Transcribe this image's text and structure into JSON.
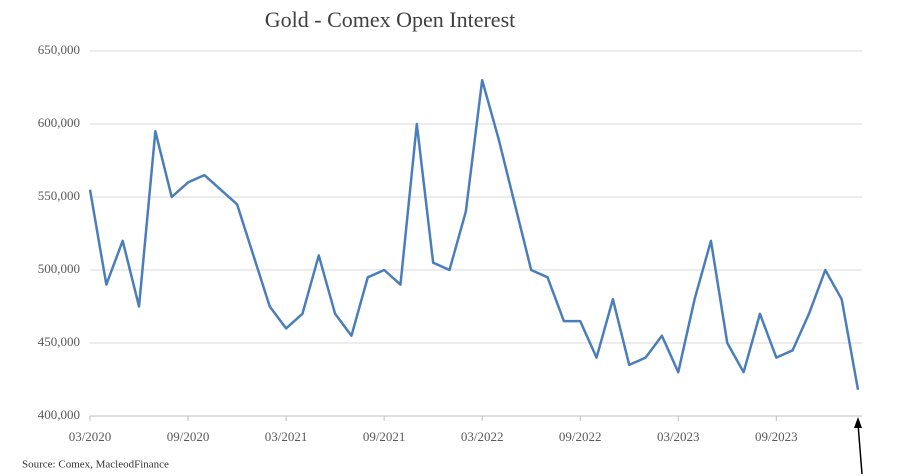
{
  "chart_data": {
    "type": "line",
    "title": "Gold - Comex Open Interest",
    "source": "Source: Comex,  MacleodFinance",
    "x": [
      "03/2020",
      "04/2020",
      "05/2020",
      "06/2020",
      "07/2020",
      "08/2020",
      "09/2020",
      "10/2020",
      "11/2020",
      "12/2020",
      "01/2021",
      "02/2021",
      "03/2021",
      "04/2021",
      "05/2021",
      "06/2021",
      "07/2021",
      "08/2021",
      "09/2021",
      "10/2021",
      "11/2021",
      "12/2021",
      "01/2022",
      "02/2022",
      "03/2022",
      "04/2022",
      "05/2022",
      "06/2022",
      "07/2022",
      "08/2022",
      "09/2022",
      "10/2022",
      "11/2022",
      "12/2022",
      "01/2023",
      "02/2023",
      "03/2023",
      "04/2023",
      "05/2023",
      "06/2023",
      "07/2023",
      "08/2023",
      "09/2023",
      "10/2023",
      "11/2023",
      "12/2023",
      "01/2024",
      "02/2024"
    ],
    "series": [
      {
        "name": "Open Interest",
        "color": "#4a7ebb",
        "values": [
          555000,
          490000,
          520000,
          475000,
          595000,
          550000,
          560000,
          565000,
          555000,
          545000,
          510000,
          475000,
          460000,
          470000,
          510000,
          470000,
          455000,
          495000,
          500000,
          490000,
          600000,
          505000,
          500000,
          540000,
          630000,
          590000,
          545000,
          500000,
          495000,
          465000,
          465000,
          440000,
          480000,
          435000,
          440000,
          455000,
          430000,
          480000,
          520000,
          450000,
          430000,
          470000,
          440000,
          445000,
          470000,
          500000,
          480000,
          418000
        ]
      }
    ],
    "xticks": [
      "03/2020",
      "09/2020",
      "03/2021",
      "09/2021",
      "03/2022",
      "09/2022",
      "03/2023",
      "09/2023"
    ],
    "ylim": [
      400000,
      650000
    ],
    "yticks": [
      {
        "value": 400000,
        "label": "400,000"
      },
      {
        "value": 450000,
        "label": "450,000"
      },
      {
        "value": 500000,
        "label": "500,000"
      },
      {
        "value": 550000,
        "label": "550,000"
      },
      {
        "value": 600000,
        "label": "600,000"
      },
      {
        "value": 650000,
        "label": "650,000"
      }
    ],
    "grid": true
  }
}
